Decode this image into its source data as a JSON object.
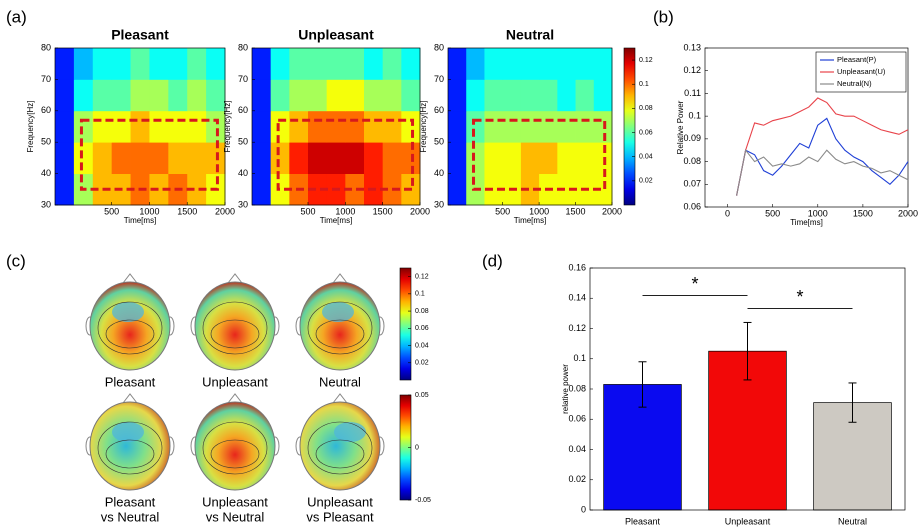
{
  "chart_data": [
    {
      "type": "heatmap",
      "panel": "(a)",
      "title": "Pleasant",
      "xlabel": "Time[ms]",
      "ylabel": "Frequency[Hz]",
      "x": [
        -125,
        125,
        375,
        625,
        875,
        1125,
        1375,
        1625,
        1875
      ],
      "y": [
        35,
        45,
        55,
        65,
        75
      ],
      "values": [
        [
          0.02,
          0.07,
          0.09,
          0.09,
          0.1,
          0.09,
          0.1,
          0.09,
          0.08
        ],
        [
          0.02,
          0.08,
          0.09,
          0.1,
          0.1,
          0.1,
          0.09,
          0.09,
          0.09
        ],
        [
          0.02,
          0.07,
          0.08,
          0.08,
          0.09,
          0.08,
          0.08,
          0.08,
          0.07
        ],
        [
          0.02,
          0.05,
          0.06,
          0.06,
          0.07,
          0.07,
          0.06,
          0.07,
          0.06
        ],
        [
          0.02,
          0.04,
          0.05,
          0.05,
          0.06,
          0.05,
          0.05,
          0.06,
          0.05
        ]
      ],
      "xlim": [
        -250,
        2000
      ],
      "ylim": [
        30,
        80
      ],
      "xticks": [
        500,
        1000,
        1500,
        2000
      ],
      "yticks": [
        30,
        40,
        50,
        60,
        70,
        80
      ],
      "clim": [
        0,
        0.13
      ],
      "highlight": {
        "xlim": [
          100,
          1900
        ],
        "ylim": [
          35,
          57
        ],
        "color": "#d7191c"
      }
    },
    {
      "type": "heatmap",
      "title": "Unpleasant",
      "xlabel": "Time[ms]",
      "ylabel": "Frequency[Hz]",
      "x": [
        -125,
        125,
        375,
        625,
        875,
        1125,
        1375,
        1625,
        1875
      ],
      "y": [
        35,
        45,
        55,
        65,
        75
      ],
      "values": [
        [
          0.02,
          0.08,
          0.1,
          0.11,
          0.11,
          0.1,
          0.11,
          0.1,
          0.09
        ],
        [
          0.02,
          0.09,
          0.11,
          0.12,
          0.12,
          0.12,
          0.11,
          0.1,
          0.1
        ],
        [
          0.02,
          0.08,
          0.09,
          0.1,
          0.1,
          0.1,
          0.09,
          0.09,
          0.08
        ],
        [
          0.02,
          0.06,
          0.07,
          0.07,
          0.08,
          0.08,
          0.07,
          0.07,
          0.06
        ],
        [
          0.02,
          0.05,
          0.06,
          0.06,
          0.06,
          0.06,
          0.05,
          0.06,
          0.05
        ]
      ],
      "xlim": [
        -250,
        2000
      ],
      "ylim": [
        30,
        80
      ],
      "xticks": [
        500,
        1000,
        1500,
        2000
      ],
      "yticks": [
        30,
        40,
        50,
        60,
        70,
        80
      ],
      "clim": [
        0,
        0.13
      ],
      "highlight": {
        "xlim": [
          100,
          1900
        ],
        "ylim": [
          35,
          57
        ],
        "color": "#d7191c"
      }
    },
    {
      "type": "heatmap",
      "title": "Neutral",
      "xlabel": "Time[ms]",
      "ylabel": "Frequency[Hz]",
      "x": [
        -125,
        125,
        375,
        625,
        875,
        1125,
        1375,
        1625,
        1875
      ],
      "y": [
        35,
        45,
        55,
        65,
        75
      ],
      "values": [
        [
          0.02,
          0.07,
          0.08,
          0.08,
          0.09,
          0.08,
          0.08,
          0.08,
          0.08
        ],
        [
          0.02,
          0.07,
          0.08,
          0.08,
          0.09,
          0.09,
          0.08,
          0.08,
          0.08
        ],
        [
          0.02,
          0.06,
          0.07,
          0.07,
          0.07,
          0.07,
          0.07,
          0.07,
          0.07
        ],
        [
          0.02,
          0.05,
          0.06,
          0.06,
          0.06,
          0.06,
          0.05,
          0.06,
          0.05
        ],
        [
          0.02,
          0.04,
          0.05,
          0.05,
          0.05,
          0.05,
          0.05,
          0.05,
          0.05
        ]
      ],
      "xlim": [
        -250,
        2000
      ],
      "ylim": [
        30,
        80
      ],
      "xticks": [
        500,
        1000,
        1500,
        2000
      ],
      "yticks": [
        30,
        40,
        50,
        60,
        70,
        80
      ],
      "clim": [
        0,
        0.13
      ],
      "highlight": {
        "xlim": [
          100,
          1900
        ],
        "ylim": [
          35,
          57
        ],
        "color": "#d7191c"
      },
      "colorbar": {
        "ticks": [
          0.02,
          0.04,
          0.06,
          0.08,
          0.1,
          0.12
        ]
      }
    },
    {
      "type": "line",
      "panel": "(b)",
      "xlabel": "Time[ms]",
      "ylabel": "Relative Power",
      "x": [
        100,
        200,
        300,
        400,
        500,
        600,
        700,
        800,
        900,
        1000,
        1100,
        1200,
        1300,
        1400,
        1500,
        1600,
        1700,
        1800,
        1900,
        2000
      ],
      "series": [
        {
          "name": "Pleasant(P)",
          "color": "#1f3fd6",
          "values": [
            0.065,
            0.085,
            0.083,
            0.076,
            0.074,
            0.078,
            0.083,
            0.088,
            0.086,
            0.096,
            0.099,
            0.09,
            0.085,
            0.082,
            0.08,
            0.076,
            0.073,
            0.07,
            0.074,
            0.08
          ]
        },
        {
          "name": "Unpleasant(U)",
          "color": "#e8434a",
          "values": [
            0.065,
            0.085,
            0.097,
            0.096,
            0.098,
            0.099,
            0.1,
            0.102,
            0.104,
            0.108,
            0.106,
            0.101,
            0.1,
            0.1,
            0.098,
            0.096,
            0.094,
            0.093,
            0.092,
            0.094
          ]
        },
        {
          "name": "Neutral(N)",
          "color": "#8a8a8a",
          "values": [
            0.065,
            0.085,
            0.08,
            0.082,
            0.078,
            0.079,
            0.078,
            0.079,
            0.082,
            0.08,
            0.085,
            0.081,
            0.079,
            0.08,
            0.078,
            0.077,
            0.075,
            0.076,
            0.074,
            0.072
          ]
        }
      ],
      "xlim": [
        -250,
        2000
      ],
      "ylim": [
        0.06,
        0.13
      ],
      "xticks": [
        0,
        500,
        1000,
        1500,
        2000
      ],
      "yticks": [
        0.06,
        0.07,
        0.08,
        0.09,
        0.1,
        0.11,
        0.12,
        0.13
      ],
      "legend": "upper right"
    },
    {
      "type": "topomap",
      "panel": "(c)",
      "maps": [
        {
          "label": [
            "Pleasant"
          ]
        },
        {
          "label": [
            "Unpleasant"
          ]
        },
        {
          "label": [
            "Neutral"
          ]
        },
        {
          "label": [
            "Pleasant",
            "vs Neutral"
          ]
        },
        {
          "label": [
            "Unpleasant",
            "vs Neutral"
          ]
        },
        {
          "label": [
            "Unpleasant",
            "vs Pleasant"
          ]
        }
      ],
      "colorbars": [
        {
          "lim": [
            0,
            0.13
          ],
          "ticks": [
            0.02,
            0.04,
            0.06,
            0.08,
            0.1,
            0.12
          ]
        },
        {
          "lim": [
            -0.05,
            0.05
          ],
          "ticks": [
            -0.05,
            0,
            0.05
          ]
        }
      ]
    },
    {
      "type": "bar",
      "panel": "(d)",
      "ylabel": "relative power",
      "categories": [
        "Pleasant",
        "Unpleasant",
        "Neutral"
      ],
      "values": [
        0.083,
        0.105,
        0.071
      ],
      "errors": [
        0.015,
        0.019,
        0.013
      ],
      "colors": [
        "#0a0af0",
        "#f20808",
        "#cdc9c2"
      ],
      "ylim": [
        0,
        0.16
      ],
      "yticks": [
        0,
        0.02,
        0.04,
        0.06,
        0.08,
        0.1,
        0.12,
        0.14,
        0.16
      ],
      "significance": [
        {
          "from": "Pleasant",
          "to": "Unpleasant",
          "label": "*"
        },
        {
          "from": "Unpleasant",
          "to": "Neutral",
          "label": "*"
        }
      ]
    }
  ]
}
